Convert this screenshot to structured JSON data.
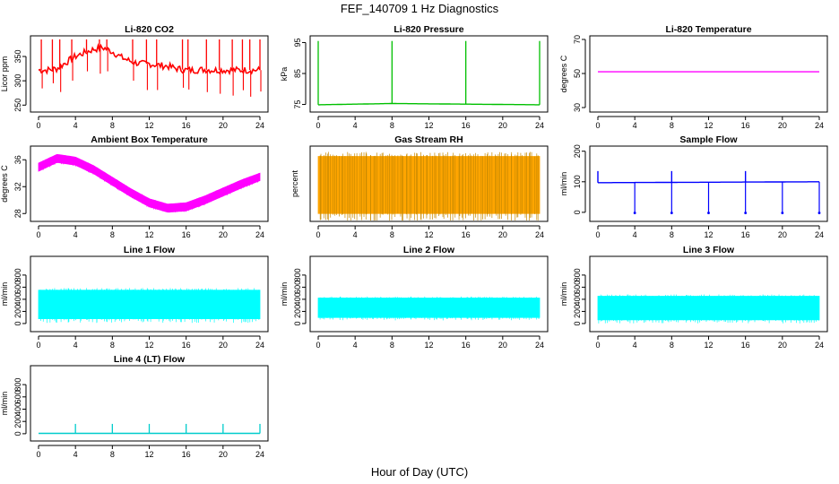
{
  "figure": {
    "title": "FEF_140709  1 Hz Diagnostics",
    "xlabel": "Hour of Day (UTC)"
  },
  "chart_data": [
    {
      "type": "line",
      "title": "Li-820 CO2",
      "ylabel": "Licor ppm",
      "xlim": [
        0,
        24
      ],
      "ylim": [
        245,
        385
      ],
      "yticks": [
        250,
        300,
        350
      ],
      "color": "#ff0000",
      "series": [
        {
          "x": [
            0,
            1,
            2,
            3,
            4,
            5,
            6,
            7,
            8,
            9,
            10,
            11,
            12,
            13,
            14,
            15,
            16,
            17,
            18,
            19,
            20,
            21,
            22,
            23,
            24
          ],
          "values": [
            322,
            322,
            325,
            338,
            350,
            358,
            365,
            368,
            360,
            348,
            340,
            335,
            335,
            332,
            330,
            325,
            322,
            322,
            323,
            322,
            322,
            322,
            322,
            322,
            322
          ]
        }
      ],
      "spikes": [
        0.3,
        1.5,
        2.3,
        3.6,
        5.2,
        6.6,
        7.4,
        10.2,
        11.7,
        12.8,
        15.6,
        16.2,
        18.2,
        19.6,
        21.0,
        22.1,
        22.9,
        24
      ]
    },
    {
      "type": "line",
      "title": "Li-820 Pressure",
      "ylabel": "kPa",
      "xlim": [
        0,
        24
      ],
      "ylim": [
        74,
        96
      ],
      "yticks": [
        75,
        85,
        95
      ],
      "color": "#00c000",
      "series": [
        {
          "x": [
            0,
            4,
            8,
            12,
            16,
            20,
            24
          ],
          "values": [
            74.9,
            75.1,
            75.3,
            75.2,
            75.1,
            75.0,
            74.9
          ]
        }
      ],
      "spikes": [
        0,
        8,
        16,
        24
      ]
    },
    {
      "type": "line",
      "title": "Li-820 Temperature",
      "ylabel": "degrees C",
      "xlim": [
        0,
        24
      ],
      "ylim": [
        30,
        70
      ],
      "yticks": [
        30,
        50,
        70
      ],
      "color": "#ff00ff",
      "series": [
        {
          "x": [
            0,
            24
          ],
          "values": [
            51,
            51
          ]
        }
      ]
    },
    {
      "type": "area",
      "title": "Ambient Box Temperature",
      "ylabel": "degrees C",
      "xlim": [
        0,
        24
      ],
      "ylim": [
        27.5,
        37.5
      ],
      "yticks": [
        28,
        32,
        36
      ],
      "color": "#ff00ff",
      "series": [
        {
          "x": [
            0,
            2,
            4,
            6,
            8,
            10,
            12,
            14,
            16,
            18,
            20,
            22,
            24
          ],
          "lower": [
            34.3,
            35.6,
            35.2,
            33.9,
            32.2,
            30.5,
            29.0,
            28.2,
            28.4,
            29.4,
            30.6,
            31.8,
            32.9
          ],
          "upper": [
            35.5,
            36.8,
            36.4,
            35.1,
            33.4,
            31.7,
            30.2,
            29.4,
            29.6,
            30.6,
            31.8,
            33.0,
            34.0
          ]
        }
      ]
    },
    {
      "type": "area",
      "title": "Gas Stream RH",
      "ylabel": "percent",
      "xlim": [
        0,
        24
      ],
      "ylim": [
        0,
        100
      ],
      "color": "#ffa500",
      "series": [
        {
          "x": [
            0,
            24
          ],
          "lower": [
            5,
            5
          ],
          "upper": [
            90,
            90
          ]
        }
      ]
    },
    {
      "type": "line",
      "title": "Sample Flow",
      "ylabel": "ml/min",
      "xlim": [
        0,
        24
      ],
      "ylim": [
        -15,
        205
      ],
      "yticks": [
        0,
        100,
        200
      ],
      "color": "#0000ff",
      "series": [
        {
          "x": [
            0,
            24
          ],
          "values": [
            97,
            100
          ]
        }
      ],
      "dips": [
        4,
        8,
        12,
        16,
        20,
        24
      ],
      "peaks": [
        0,
        8,
        16
      ]
    },
    {
      "type": "area",
      "title": "Line 1 Flow",
      "ylabel": "ml/min",
      "xlim": [
        0,
        24
      ],
      "ylim": [
        -60,
        1050
      ],
      "yticks": [
        0,
        200,
        400,
        600,
        800
      ],
      "color": "#00ffff",
      "series": [
        {
          "x": [
            0,
            24
          ],
          "lower": [
            80,
            80
          ],
          "upper": [
            550,
            550
          ]
        }
      ]
    },
    {
      "type": "area",
      "title": "Line 2 Flow",
      "ylabel": "ml/min",
      "xlim": [
        0,
        24
      ],
      "ylim": [
        -60,
        1050
      ],
      "yticks": [
        0,
        200,
        400,
        600,
        800
      ],
      "color": "#00ffff",
      "series": [
        {
          "x": [
            0,
            24
          ],
          "lower": [
            100,
            100
          ],
          "upper": [
            420,
            420
          ]
        }
      ]
    },
    {
      "type": "area",
      "title": "Line 3 Flow",
      "ylabel": "ml/min",
      "xlim": [
        0,
        24
      ],
      "ylim": [
        -60,
        1050
      ],
      "yticks": [
        0,
        200,
        400,
        600,
        800
      ],
      "color": "#00ffff",
      "series": [
        {
          "x": [
            0,
            24
          ],
          "lower": [
            60,
            60
          ],
          "upper": [
            450,
            450
          ]
        }
      ]
    },
    {
      "type": "line",
      "title": "Line 4 (LT) Flow",
      "ylabel": "ml/min",
      "xlim": [
        0,
        24
      ],
      "ylim": [
        -60,
        1050
      ],
      "yticks": [
        0,
        200,
        400,
        600,
        800
      ],
      "color": "#00cccc",
      "series": [
        {
          "x": [
            0,
            24
          ],
          "values": [
            5,
            5
          ]
        }
      ],
      "spikes": [
        4,
        8,
        12,
        16,
        20,
        24
      ]
    }
  ],
  "xticks": [
    0,
    4,
    8,
    12,
    16,
    20,
    24
  ]
}
